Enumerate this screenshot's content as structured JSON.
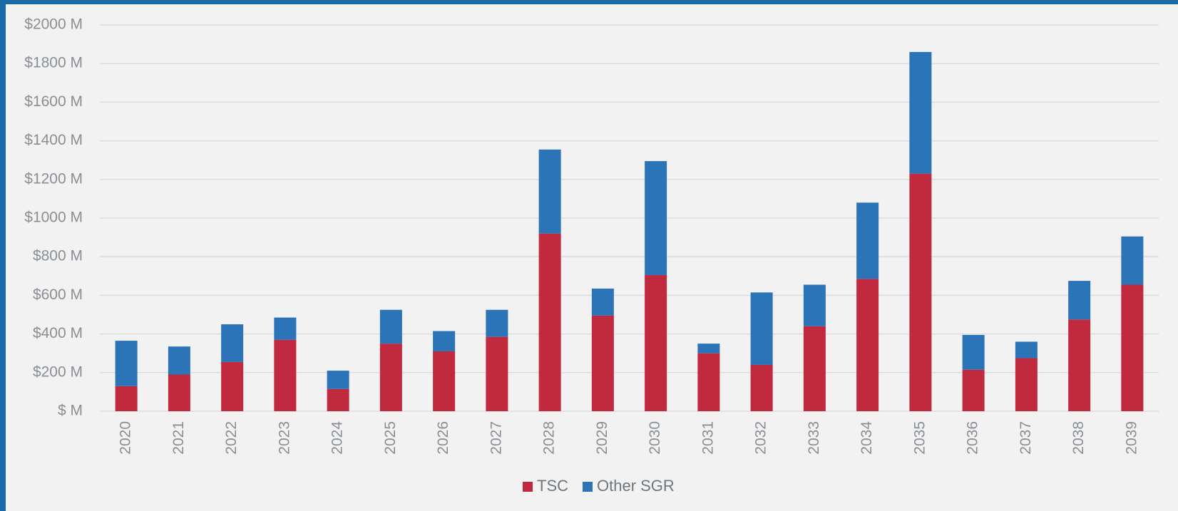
{
  "chart_data": {
    "type": "stacked-bar",
    "categories": [
      "2020",
      "2021",
      "2022",
      "2023",
      "2024",
      "2025",
      "2026",
      "2027",
      "2028",
      "2029",
      "2030",
      "2031",
      "2032",
      "2033",
      "2034",
      "2035",
      "2036",
      "2037",
      "2038",
      "2039"
    ],
    "series": [
      {
        "name": "TSC",
        "color": "#c1293f",
        "values": [
          130,
          190,
          255,
          370,
          115,
          350,
          310,
          385,
          920,
          495,
          705,
          300,
          240,
          440,
          685,
          1230,
          215,
          275,
          475,
          655
        ]
      },
      {
        "name": "Other SGR",
        "color": "#2b74b8",
        "values": [
          235,
          145,
          195,
          115,
          95,
          175,
          105,
          140,
          435,
          140,
          590,
          50,
          375,
          215,
          395,
          630,
          180,
          85,
          200,
          250
        ]
      }
    ],
    "ylim": [
      0,
      2000
    ],
    "yticks": [
      {
        "value": 0,
        "label": "$ M"
      },
      {
        "value": 200,
        "label": "$200 M"
      },
      {
        "value": 400,
        "label": "$400 M"
      },
      {
        "value": 600,
        "label": "$600 M"
      },
      {
        "value": 800,
        "label": "$800 M"
      },
      {
        "value": 1000,
        "label": "$1000 M"
      },
      {
        "value": 1200,
        "label": "$1200 M"
      },
      {
        "value": 1400,
        "label": "$1400 M"
      },
      {
        "value": 1600,
        "label": "$1600 M"
      },
      {
        "value": 1800,
        "label": "$1800 M"
      },
      {
        "value": 2000,
        "label": "$2000 M"
      }
    ],
    "grid": true
  }
}
